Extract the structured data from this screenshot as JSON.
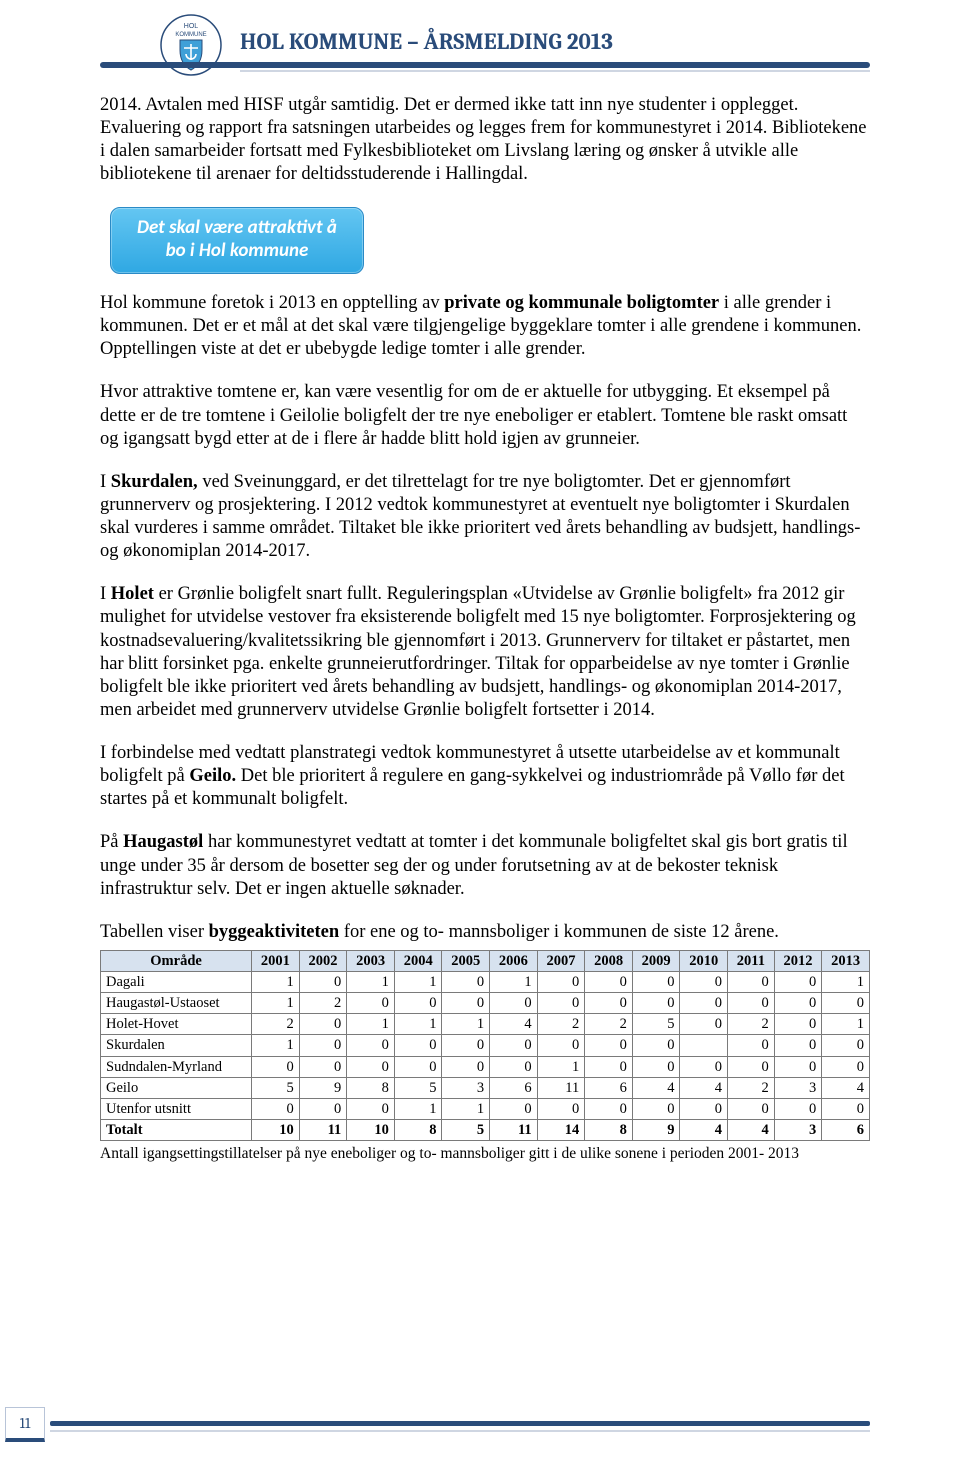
{
  "header": {
    "title": "HOL KOMMUNE – ÅRSMELDING 2013",
    "crest_text_top": "HOL",
    "crest_text_bottom": "KOMMUNE",
    "title_color": "#2a4c7a",
    "line_color": "#2a4c7a"
  },
  "callout": {
    "line1": "Det skal være attraktivt å",
    "line2": "bo i Hol kommune",
    "bg_top": "#64c6f2",
    "bg_bottom": "#2fa8e3",
    "text_color": "#ffffff"
  },
  "paragraphs": {
    "p1": "2014. Avtalen med HISF utgår samtidig. Det er dermed ikke tatt inn nye studenter i opplegget. Evaluering og rapport fra satsningen utarbeides og legges frem for kommunestyret i 2014. Bibliotekene i dalen samarbeider fortsatt med Fylkesbiblioteket om Livslang læring og ønsker å utvikle alle bibliotekene til arenaer for deltidsstuderende i Hallingdal.",
    "p2_a": "Hol kommune foretok i 2013 en opptelling av ",
    "p2_bold": "private og kommunale boligtomter",
    "p2_b": " i alle grender i kommunen. Det er et mål at det skal være tilgjengelige byggeklare tomter i alle grendene i kommunen. Opptellingen viste at det er ubebygde ledige tomter i alle grender.",
    "p3": "Hvor attraktive tomtene er, kan være vesentlig for om de er aktuelle for utbygging. Et eksempel på dette er de tre tomtene i Geilolie boligfelt der tre nye eneboliger er etablert. Tomtene ble raskt omsatt og igangsatt bygd etter at de i flere år hadde blitt hold igjen av grunneier.",
    "p4_a": "I ",
    "p4_bold": "Skurdalen,",
    "p4_b": " ved Sveinunggard, er det tilrettelagt for tre nye boligtomter. Det er gjennomført grunnerverv og prosjektering. I 2012 vedtok kommunestyret at eventuelt nye boligtomter i Skurdalen skal vurderes i samme området. Tiltaket ble ikke prioritert ved årets behandling av budsjett, handlings- og økonomiplan 2014-2017.",
    "p5_a": "I ",
    "p5_bold": "Holet",
    "p5_b": " er Grønlie boligfelt snart fullt. Reguleringsplan «Utvidelse av Grønlie boligfelt» fra 2012 gir mulighet for utvidelse vestover fra eksisterende boligfelt med 15 nye boligtomter. Forprosjektering og kostnadsevaluering/kvalitetssikring ble gjennomført i 2013. Grunnerverv for tiltaket er påstartet, men har blitt forsinket pga. enkelte grunneierutfordringer. Tiltak for opparbeidelse av nye tomter i Grønlie boligfelt ble ikke prioritert ved årets behandling av budsjett, handlings- og økonomiplan 2014-2017, men arbeidet med grunnerverv utvidelse Grønlie boligfelt fortsetter i 2014.",
    "p6_a": "I forbindelse med vedtatt planstrategi vedtok kommunestyret å utsette utarbeidelse av et kommunalt boligfelt på ",
    "p6_bold": "Geilo.",
    "p6_b": " Det ble prioritert å regulere en gang-sykkelvei og industriområde på Vøllo før det startes på et kommunalt boligfelt.",
    "p7_a": "På ",
    "p7_bold": "Haugastøl",
    "p7_b": " har kommunestyret vedtatt at tomter i det kommunale boligfeltet skal gis bort gratis til unge under 35 år dersom de bosetter seg der og under forutsetning av at de bekoster teknisk infrastruktur selv. Det er ingen aktuelle søknader.",
    "p8_a": "Tabellen viser ",
    "p8_bold": "byggeaktiviteten",
    "p8_b": " for ene og to- mannsboliger i kommunen de siste 12 årene."
  },
  "table": {
    "header_bg": "#d7e2ef",
    "border_color": "#7a7a7a",
    "columns": [
      "Område",
      "2001",
      "2002",
      "2003",
      "2004",
      "2005",
      "2006",
      "2007",
      "2008",
      "2009",
      "2010",
      "2011",
      "2012",
      "2013"
    ],
    "rows": [
      {
        "label": "Dagali",
        "v": [
          "1",
          "0",
          "1",
          "1",
          "0",
          "1",
          "0",
          "0",
          "0",
          "0",
          "0",
          "0",
          "1"
        ]
      },
      {
        "label": "Haugastøl-Ustaoset",
        "v": [
          "1",
          "2",
          "0",
          "0",
          "0",
          "0",
          "0",
          "0",
          "0",
          "0",
          "0",
          "0",
          "0"
        ]
      },
      {
        "label": "Holet-Hovet",
        "v": [
          "2",
          "0",
          "1",
          "1",
          "1",
          "4",
          "2",
          "2",
          "5",
          "0",
          "2",
          "0",
          "1"
        ]
      },
      {
        "label": "Skurdalen",
        "v": [
          "1",
          "0",
          "0",
          "0",
          "0",
          "0",
          "0",
          "0",
          "0",
          "",
          "0",
          "0",
          "0"
        ]
      },
      {
        "label": "Sudndalen-Myrland",
        "v": [
          "0",
          "0",
          "0",
          "0",
          "0",
          "0",
          "1",
          "0",
          "0",
          "0",
          "0",
          "0",
          "0"
        ]
      },
      {
        "label": "Geilo",
        "v": [
          "5",
          "9",
          "8",
          "5",
          "3",
          "6",
          "11",
          "6",
          "4",
          "4",
          "2",
          "3",
          "4"
        ]
      },
      {
        "label": "Utenfor utsnitt",
        "v": [
          "0",
          "0",
          "0",
          "1",
          "1",
          "0",
          "0",
          "0",
          "0",
          "0",
          "0",
          "0",
          "0"
        ]
      }
    ],
    "total": {
      "label": "Totalt",
      "v": [
        "10",
        "11",
        "10",
        "8",
        "5",
        "11",
        "14",
        "8",
        "9",
        "4",
        "4",
        "3",
        "6"
      ]
    },
    "caption": "Antall igangsettingstillatelser på nye eneboliger og to- mannsboliger gitt i de ulike sonene i perioden 2001- 2013"
  },
  "page_number": "11"
}
